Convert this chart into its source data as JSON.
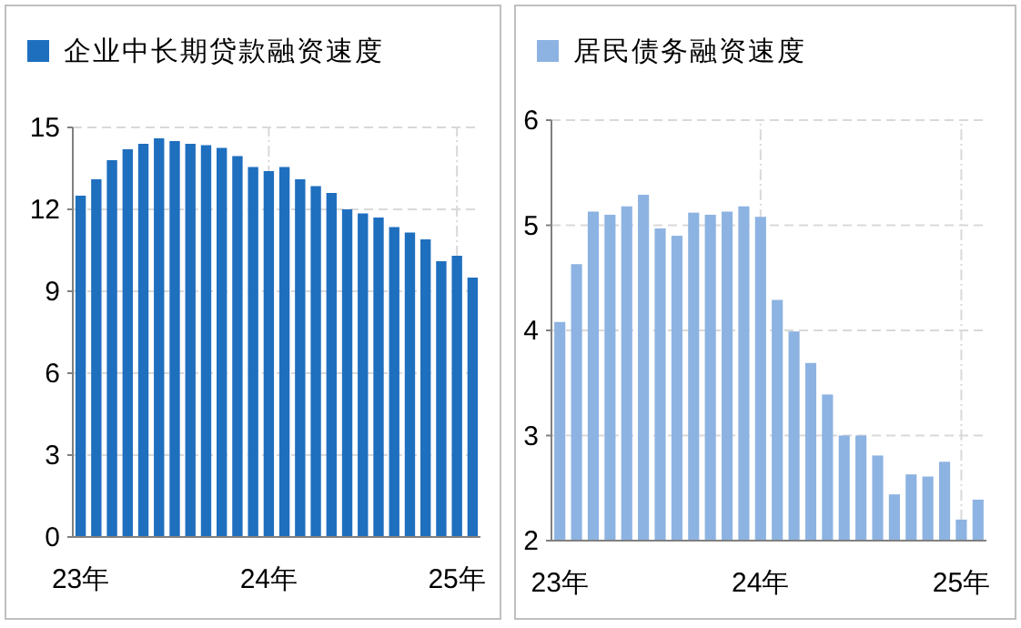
{
  "chart_data": [
    {
      "type": "bar",
      "categories": [
        "23年",
        null,
        null,
        null,
        null,
        null,
        null,
        null,
        null,
        null,
        null,
        null,
        "24年",
        null,
        null,
        null,
        null,
        null,
        null,
        null,
        null,
        null,
        null,
        null,
        "25年",
        null
      ],
      "series": [
        {
          "name": "企业中长期贷款融资速度",
          "color": "#1f6fbf",
          "values": [
            12.5,
            13.1,
            13.8,
            14.2,
            14.4,
            14.6,
            14.5,
            14.4,
            14.35,
            14.25,
            13.95,
            13.55,
            13.4,
            13.55,
            13.1,
            12.85,
            12.6,
            12.0,
            11.85,
            11.7,
            11.35,
            11.15,
            10.9,
            10.1,
            10.3,
            9.5
          ]
        }
      ],
      "ylim": [
        0,
        15
      ],
      "yticks": [
        0,
        3,
        6,
        9,
        12,
        15
      ],
      "grid": true,
      "legend": "top"
    },
    {
      "type": "bar",
      "categories": [
        "23年",
        null,
        null,
        null,
        null,
        null,
        null,
        null,
        null,
        null,
        null,
        null,
        "24年",
        null,
        null,
        null,
        null,
        null,
        null,
        null,
        null,
        null,
        null,
        null,
        "25年",
        null
      ],
      "series": [
        {
          "name": "居民债务融资速度",
          "color": "#8db3e2",
          "values": [
            4.08,
            4.63,
            5.13,
            5.1,
            5.18,
            5.29,
            4.97,
            4.9,
            5.12,
            5.1,
            5.13,
            5.18,
            5.08,
            4.29,
            3.99,
            3.69,
            3.39,
            3.0,
            3.0,
            2.81,
            2.44,
            2.63,
            2.61,
            2.75,
            2.2,
            2.39
          ]
        }
      ],
      "ylim": [
        2,
        6
      ],
      "yticks": [
        2,
        3,
        4,
        5,
        6
      ],
      "grid": true,
      "legend": "top"
    }
  ]
}
